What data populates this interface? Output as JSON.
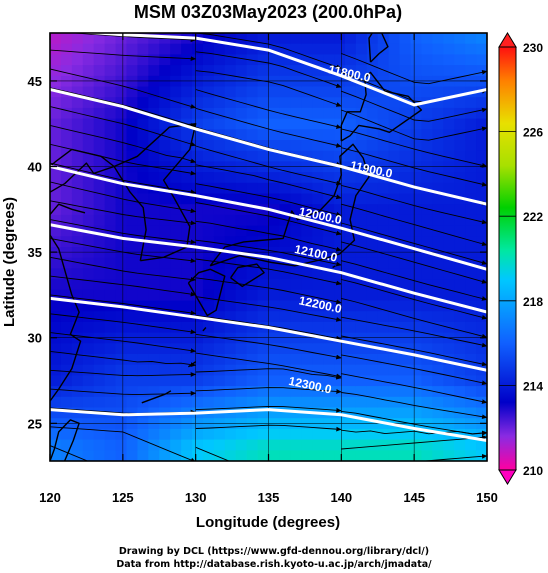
{
  "chart_data": {
    "type": "heatmap",
    "title": "MSM 03Z03May2023 (200.0hPa)",
    "xlabel": "Longitude (degrees)",
    "ylabel": "Latitude  (degrees)",
    "xlim": [
      120,
      150
    ],
    "ylim": [
      22.8,
      47.8
    ],
    "xticks": [
      120,
      125,
      130,
      135,
      140,
      145,
      150
    ],
    "yticks": [
      25,
      30,
      35,
      40,
      45
    ],
    "colorbar": {
      "ticks": [
        210,
        214,
        218,
        222,
        226,
        230
      ],
      "range": [
        210,
        230
      ],
      "colors": [
        "#ff00a0",
        "#8a2be2",
        "#0000c8",
        "#1060ff",
        "#00c8ff",
        "#00e8a0",
        "#00d000",
        "#a8e000",
        "#e8e000",
        "#ff8000",
        "#ff1010"
      ]
    },
    "field_samples": {
      "lon": [
        120,
        125,
        130,
        135,
        140,
        145,
        150
      ],
      "lat": [
        47.5,
        42.5,
        37.5,
        32.5,
        27.5,
        23.5
      ],
      "temperature_K": [
        [
          211,
          212,
          213,
          214,
          214,
          216,
          217
        ],
        [
          212,
          213,
          215,
          216,
          216,
          215,
          214
        ],
        [
          212,
          213,
          213,
          213,
          214,
          214,
          214
        ],
        [
          213,
          213,
          213,
          214,
          214,
          214,
          214
        ],
        [
          214,
          215,
          215,
          216,
          216,
          216,
          215
        ],
        [
          217,
          216,
          219,
          220,
          220,
          220,
          219
        ]
      ]
    },
    "contours": [
      {
        "label": "11800.0",
        "label_lon": 140.5,
        "label_lat": 45.2,
        "points": [
          [
            120,
            48.0
          ],
          [
            125,
            47.7
          ],
          [
            130,
            47.5
          ],
          [
            135,
            46.8
          ],
          [
            140,
            45.3
          ],
          [
            145,
            43.6
          ],
          [
            150,
            44.5
          ]
        ]
      },
      {
        "label": "11900.0",
        "label_lon": 142.0,
        "label_lat": 39.6,
        "points": [
          [
            120,
            44.5
          ],
          [
            125,
            43.5
          ],
          [
            130,
            42.2
          ],
          [
            135,
            41.0
          ],
          [
            140,
            40.0
          ],
          [
            145,
            38.8
          ],
          [
            150,
            37.8
          ]
        ]
      },
      {
        "label": "12000.0",
        "label_lon": 138.5,
        "label_lat": 36.9,
        "points": [
          [
            120,
            40.0
          ],
          [
            125,
            39.0
          ],
          [
            130,
            38.3
          ],
          [
            135,
            37.5
          ],
          [
            140,
            36.4
          ],
          [
            145,
            35.2
          ],
          [
            150,
            34.0
          ]
        ]
      },
      {
        "label": "12100.0",
        "label_lon": 138.2,
        "label_lat": 34.7,
        "points": [
          [
            120,
            36.6
          ],
          [
            125,
            35.8
          ],
          [
            130,
            35.3
          ],
          [
            135,
            34.7
          ],
          [
            140,
            33.8
          ],
          [
            145,
            32.6
          ],
          [
            150,
            31.5
          ]
        ]
      },
      {
        "label": "12200.0",
        "label_lon": 138.5,
        "label_lat": 31.7,
        "points": [
          [
            120,
            32.3
          ],
          [
            125,
            31.8
          ],
          [
            130,
            31.2
          ],
          [
            135,
            30.6
          ],
          [
            140,
            29.8
          ],
          [
            145,
            29.0
          ],
          [
            150,
            28.1
          ]
        ]
      },
      {
        "label": "12300.0",
        "label_lon": 137.8,
        "label_lat": 27.0,
        "points": [
          [
            120,
            25.8
          ],
          [
            125,
            25.5
          ],
          [
            130,
            25.6
          ],
          [
            135,
            25.8
          ],
          [
            140,
            25.5
          ],
          [
            145,
            24.7
          ],
          [
            150,
            24.0
          ]
        ]
      }
    ]
  },
  "credits": {
    "line1": "Drawing by DCL (https://www.gfd-dennou.org/library/dcl/)",
    "line2": "Data from http://database.rish.kyoto-u.ac.jp/arch/jmadata/"
  }
}
